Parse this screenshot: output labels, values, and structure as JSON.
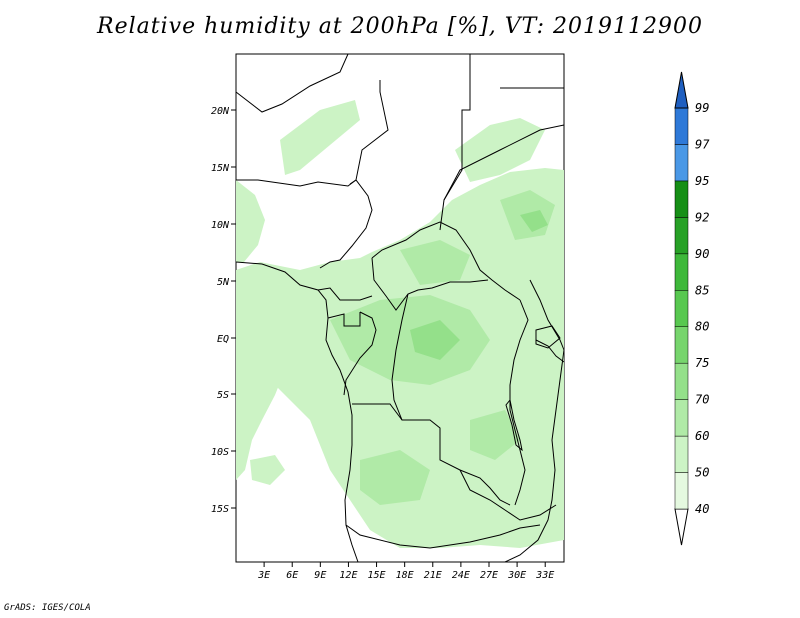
{
  "title": "Relative humidity at 200hPa [%], VT: 2019112900",
  "credit": "GrADS: IGES/COLA",
  "map": {
    "lon_range": [
      0,
      35
    ],
    "lat_range": [
      -20,
      25
    ],
    "lat_ticks": [
      "20N",
      "15N",
      "10N",
      "5N",
      "EQ",
      "5S",
      "10S",
      "15S"
    ],
    "lon_ticks": [
      "3E",
      "6E",
      "9E",
      "12E",
      "15E",
      "18E",
      "21E",
      "24E",
      "27E",
      "30E",
      "33E"
    ]
  },
  "colorbar": {
    "levels": [
      "40",
      "50",
      "60",
      "70",
      "75",
      "80",
      "85",
      "90",
      "92",
      "95",
      "97",
      "99"
    ],
    "colors": [
      "#ffffff",
      "#e5f9e0",
      "#ccf3c5",
      "#b0eaa7",
      "#94e08a",
      "#77d56d",
      "#58c850",
      "#3eb83a",
      "#27a126",
      "#168f16",
      "#4a98e6",
      "#2e79d8",
      "#1f5fc0"
    ]
  }
}
